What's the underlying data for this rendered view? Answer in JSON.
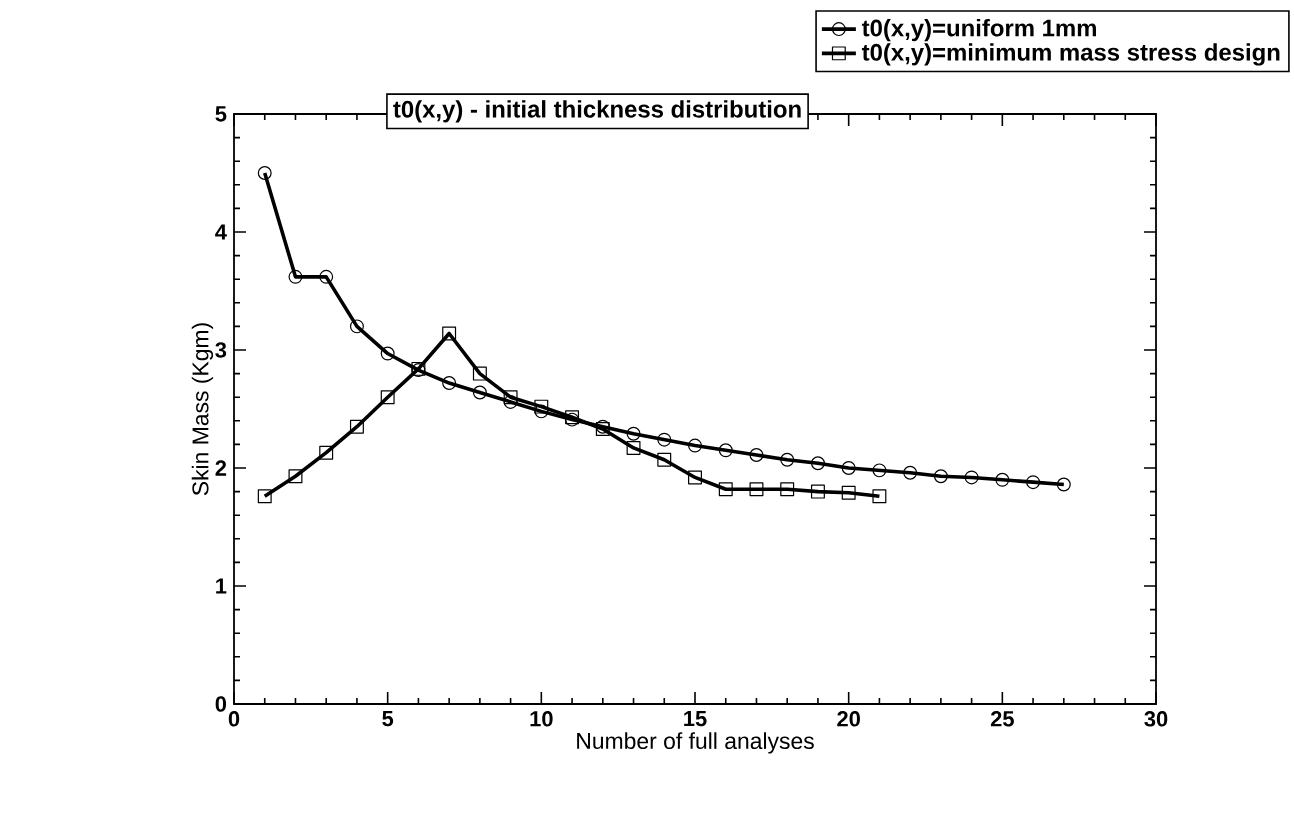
{
  "chart_data": {
    "type": "line",
    "xlabel": "Number of full analyses",
    "ylabel": "Skin Mass (Kgm)",
    "xlim": [
      0,
      30
    ],
    "ylim": [
      0,
      5
    ],
    "xticks": [
      0,
      5,
      10,
      15,
      20,
      25,
      30
    ],
    "yticks": [
      0,
      1,
      2,
      3,
      4,
      5
    ],
    "legend": "top right",
    "grid": false,
    "line_style": "solid",
    "annotations": [
      "t0(x,y) - initial thickness distribution"
    ],
    "series": [
      {
        "name": "t0(x,y)=uniform 1mm",
        "color": "#000000",
        "marker": "circle",
        "x": [
          1,
          2,
          3,
          4,
          5,
          6,
          7,
          8,
          9,
          10,
          11,
          12,
          13,
          14,
          15,
          16,
          17,
          18,
          19,
          20,
          21,
          22,
          23,
          24,
          25,
          26,
          27
        ],
        "values": [
          4.5,
          3.62,
          3.62,
          3.2,
          2.97,
          2.83,
          2.72,
          2.64,
          2.56,
          2.48,
          2.41,
          2.35,
          2.29,
          2.24,
          2.19,
          2.15,
          2.11,
          2.07,
          2.04,
          2.0,
          1.98,
          1.96,
          1.93,
          1.92,
          1.9,
          1.88,
          1.86
        ]
      },
      {
        "name": "t0(x,y)=minimum mass stress design",
        "color": "#000000",
        "marker": "square",
        "x": [
          1,
          2,
          3,
          4,
          5,
          6,
          7,
          8,
          9,
          10,
          11,
          12,
          13,
          14,
          15,
          16,
          17,
          18,
          19,
          20,
          21
        ],
        "values": [
          1.76,
          1.93,
          2.13,
          2.35,
          2.6,
          2.84,
          3.14,
          2.8,
          2.6,
          2.52,
          2.43,
          2.33,
          2.17,
          2.07,
          1.92,
          1.82,
          1.82,
          1.82,
          1.8,
          1.79,
          1.76
        ]
      }
    ]
  }
}
